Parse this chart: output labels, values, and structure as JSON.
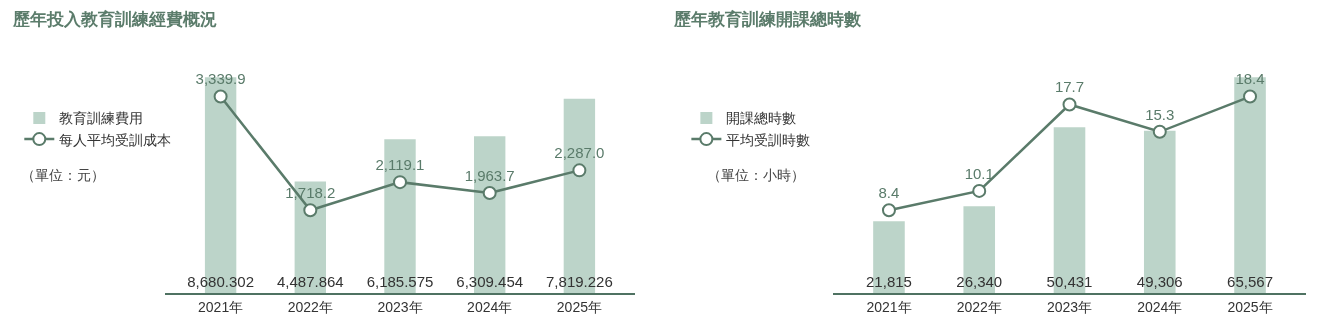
{
  "chart_data": [
    {
      "type": "bar",
      "title": "歷年投入教育訓練經費概況",
      "categories": [
        "2021年",
        "2022年",
        "2023年",
        "2024年",
        "2025年"
      ],
      "series": [
        {
          "name": "教育訓練費用",
          "color": "#bcd4c9",
          "values": [
            8680.302,
            4487.864,
            6185.575,
            6309.454,
            7819.226
          ],
          "value_labels": [
            "8,680.302",
            "4,487.864",
            "6,185.575",
            "6,309.454",
            "7,819.226"
          ]
        },
        {
          "name": "每人平均受訓成本",
          "type": "line",
          "axis": "y2",
          "color": "#5a7b6a",
          "values": [
            3339.9,
            1718.2,
            2119.1,
            1963.7,
            2287.0
          ],
          "value_labels": [
            "3,339.9",
            "1,718.2",
            "2,119.1",
            "1,963.7",
            "2,287.0"
          ]
        }
      ],
      "tick_labels": "x",
      "grid": false,
      "legend": "left",
      "marker": "circle",
      "line_style": "solid",
      "annotations": [
        "（單位：元）"
      ]
    },
    {
      "type": "bar",
      "title": "歷年教育訓練開課總時數",
      "categories": [
        "2021年",
        "2022年",
        "2023年",
        "2024年",
        "2025年"
      ],
      "series": [
        {
          "name": "開課總時數",
          "color": "#bcd4c9",
          "values": [
            21815,
            26340,
            50431,
            49306,
            65567
          ],
          "value_labels": [
            "21,815",
            "26,340",
            "50,431",
            "49,306",
            "65,567"
          ]
        },
        {
          "name": "平均受訓時數",
          "type": "line",
          "axis": "y2",
          "color": "#5a7b6a",
          "values": [
            8.4,
            10.1,
            17.7,
            15.3,
            18.4
          ],
          "value_labels": [
            "8.4",
            "10.1",
            "17.7",
            "15.3",
            "18.4"
          ]
        }
      ],
      "tick_labels": "x",
      "grid": false,
      "legend": "left",
      "marker": "circle",
      "line_style": "solid",
      "annotations": [
        "（單位：小時）"
      ]
    }
  ]
}
